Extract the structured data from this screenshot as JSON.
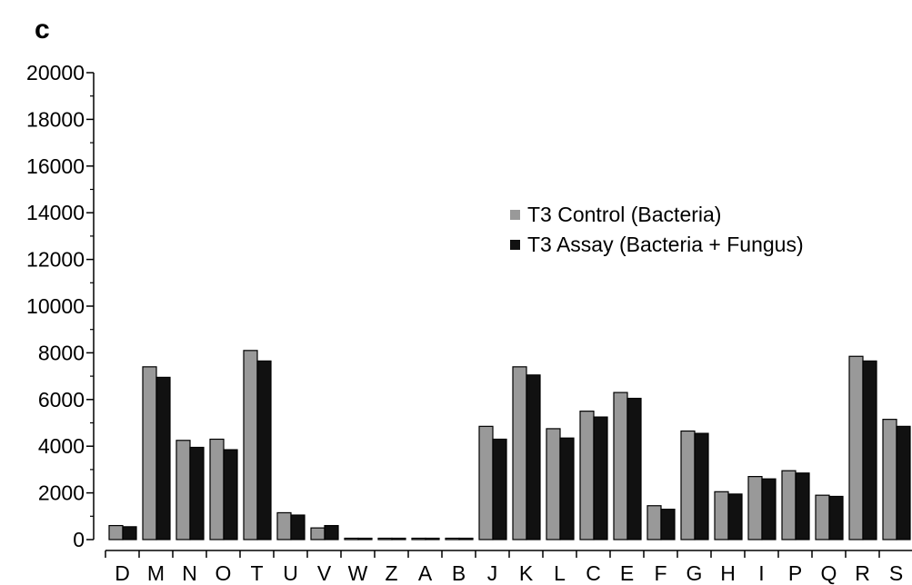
{
  "panel_label": "c",
  "chart_data": {
    "type": "bar",
    "title": "",
    "xlabel": "",
    "ylabel": "",
    "ylim": [
      0,
      20000
    ],
    "yticks": [
      0,
      2000,
      4000,
      6000,
      8000,
      10000,
      12000,
      14000,
      16000,
      18000,
      20000
    ],
    "legend_position": "right",
    "grid": false,
    "categories": [
      "D",
      "M",
      "N",
      "O",
      "T",
      "U",
      "V",
      "W",
      "Z",
      "A",
      "B",
      "J",
      "K",
      "L",
      "C",
      "E",
      "F",
      "G",
      "H",
      "I",
      "P",
      "Q",
      "R",
      "S"
    ],
    "series": [
      {
        "name": "T3 Control (Bacteria)",
        "color": "#999999",
        "values": [
          600,
          7400,
          4250,
          4300,
          8100,
          1150,
          500,
          50,
          20,
          20,
          50,
          4850,
          7400,
          4750,
          5500,
          6300,
          1450,
          4650,
          2050,
          2700,
          2950,
          1900,
          7850,
          5150
        ]
      },
      {
        "name": "T3 Assay (Bacteria + Fungus)",
        "color": "#111111",
        "values": [
          550,
          6950,
          3950,
          3850,
          7650,
          1050,
          600,
          50,
          20,
          20,
          50,
          4300,
          7050,
          4350,
          5250,
          6050,
          1300,
          4550,
          1950,
          2600,
          2850,
          1850,
          7650,
          4850
        ]
      }
    ]
  }
}
